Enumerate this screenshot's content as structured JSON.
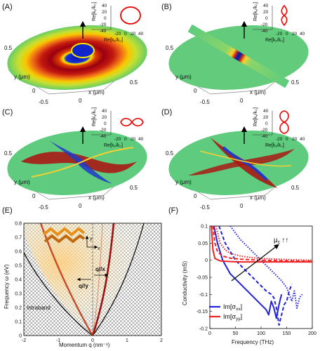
{
  "panels": {
    "A": {
      "letter": "(A)",
      "ticks": [
        "40",
        "20",
        "0",
        "-20",
        "-40",
        "-20",
        "0",
        "20",
        "40"
      ],
      "ylabel": "Re[kᵧ/k₀]",
      "xlabel": "Re[kₓ/k₀]",
      "axis_x": "x (μm)",
      "axis_y": "y (μm)",
      "t1": "0.5",
      "t2": "-0.5",
      "t3": "0",
      "t4": "-0.5",
      "t5": "0",
      "t6": "0.5"
    },
    "B": {
      "letter": "(B)",
      "ticks": [
        "40",
        "20",
        "0",
        "-20",
        "-40",
        "-20",
        "0",
        "20",
        "40"
      ],
      "ylabel": "Re[kᵧ/k₀]",
      "xlabel": "Re[kₓ/k₀]",
      "axis_x": "x (μm)",
      "axis_y": "y (μm)",
      "t1": "0.5",
      "t2": "-0.5",
      "t3": "0",
      "t4": "-0.5",
      "t5": "0",
      "t6": "0.5"
    },
    "C": {
      "letter": "(C)",
      "ticks": [
        "40",
        "20",
        "0",
        "-20",
        "-40",
        "-20",
        "0",
        "20",
        "40"
      ],
      "ylabel": "Re[kᵧ/k₀]",
      "xlabel": "Re[kₓ/k₀]",
      "axis_x": "x (μm)",
      "axis_y": "y (μm)",
      "t1": "0.5",
      "t2": "-0.5",
      "t3": "0",
      "t4": "-0.5",
      "t5": "0",
      "t6": "0.5"
    },
    "D": {
      "letter": "(D)",
      "ticks": [
        "40",
        "20",
        "0",
        "-20",
        "-40",
        "-20",
        "0",
        "20",
        "40"
      ],
      "ylabel": "Re[kᵧ/k₀]",
      "xlabel": "Re[kₓ/k₀]",
      "axis_x": "x (μm)",
      "axis_y": "y (μm)",
      "t1": "0.5",
      "t2": "-0.5",
      "t3": "0",
      "t4": "-0.5",
      "t5": "0",
      "t6": "0.5"
    }
  },
  "panelE": {
    "letter": "(E)",
    "ylabel": "Frequency ω (eV)",
    "xlabel": "Momentum q (nm⁻¹)",
    "yticks": [
      "0",
      "0.1",
      "0.2",
      "0.3",
      "0.4",
      "0.5",
      "0.6",
      "0.7",
      "0.8"
    ],
    "xticks": [
      "-2",
      "-1",
      "0",
      "1",
      "2"
    ],
    "intraband": "Intraband",
    "qx": "q//x",
    "qy": "q//y",
    "axis_y": "y",
    "axis_x": "x"
  },
  "panelF": {
    "letter": "(F)",
    "ylabel": "Conductivity (mS)",
    "xlabel": "Frequency (THz)",
    "yticks": [
      "0.1",
      "0.05",
      "0",
      "-0.05",
      "-0.1",
      "-0.15",
      "-0.2"
    ],
    "xticks": [
      "0",
      "50",
      "100",
      "150",
      "200"
    ],
    "mu": "μ",
    "mu_sub": "c",
    "arrows": "↑↑",
    "legend": [
      {
        "label": "Im[σ",
        "sub": "xx",
        "close": "]",
        "color": "#2222dd"
      },
      {
        "label": "Im[σ",
        "sub": "yy",
        "close": "]",
        "color": "#ee2222"
      }
    ]
  },
  "chart_data": {
    "type": "line",
    "xlabel": "Frequency (THz)",
    "ylabel": "Conductivity (mS)",
    "xlim": [
      0,
      200
    ],
    "ylim": [
      -0.2,
      0.1
    ],
    "series": [
      {
        "name": "Im[σxx]",
        "style": "solid",
        "color": "#2222dd",
        "x": [
          8,
          15,
          25,
          40,
          60,
          80,
          100,
          110,
          115,
          120,
          125,
          130,
          135,
          140
        ],
        "y": [
          0.1,
          0.05,
          0.0,
          -0.04,
          -0.07,
          -0.1,
          -0.13,
          -0.145,
          -0.16,
          -0.12,
          -0.14,
          -0.17,
          -0.13,
          -0.1
        ]
      },
      {
        "name": "Im[σxx]",
        "style": "dashed",
        "color": "#2222dd",
        "x": [
          18,
          30,
          50,
          70,
          90,
          110,
          120,
          125,
          130,
          135,
          140,
          145,
          150,
          155,
          160
        ],
        "y": [
          0.1,
          0.05,
          0.0,
          -0.03,
          -0.06,
          -0.09,
          -0.1,
          -0.11,
          -0.14,
          -0.19,
          -0.16,
          -0.13,
          -0.12,
          -0.09,
          -0.07
        ]
      },
      {
        "name": "Im[σxx]",
        "style": "dotted",
        "color": "#2222dd",
        "x": [
          40,
          60,
          80,
          100,
          120,
          140,
          150,
          155,
          160,
          165,
          170,
          175,
          180
        ],
        "y": [
          0.1,
          0.06,
          0.03,
          0.0,
          -0.03,
          -0.06,
          -0.08,
          -0.1,
          -0.12,
          -0.09,
          -0.14,
          -0.11,
          -0.1
        ]
      },
      {
        "name": "Im[σyy]",
        "style": "solid",
        "color": "#ee2222",
        "x": [
          3,
          6,
          10,
          20,
          40,
          60,
          100,
          150,
          200
        ],
        "y": [
          0.1,
          0.03,
          0.005,
          -0.002,
          -0.004,
          -0.005,
          -0.005,
          -0.005,
          -0.005
        ]
      },
      {
        "name": "Im[σyy]",
        "style": "dashed",
        "color": "#ee2222",
        "x": [
          6,
          10,
          15,
          25,
          40,
          60,
          100,
          150,
          200
        ],
        "y": [
          0.1,
          0.05,
          0.025,
          0.012,
          0.006,
          0.003,
          0.0,
          -0.002,
          -0.003
        ]
      },
      {
        "name": "Im[σyy]",
        "style": "dotted",
        "color": "#ee2222",
        "x": [
          12,
          20,
          30,
          40,
          60,
          80,
          100,
          150,
          200
        ],
        "y": [
          0.1,
          0.05,
          0.03,
          0.02,
          0.012,
          0.008,
          0.005,
          0.002,
          0.0
        ]
      }
    ]
  }
}
